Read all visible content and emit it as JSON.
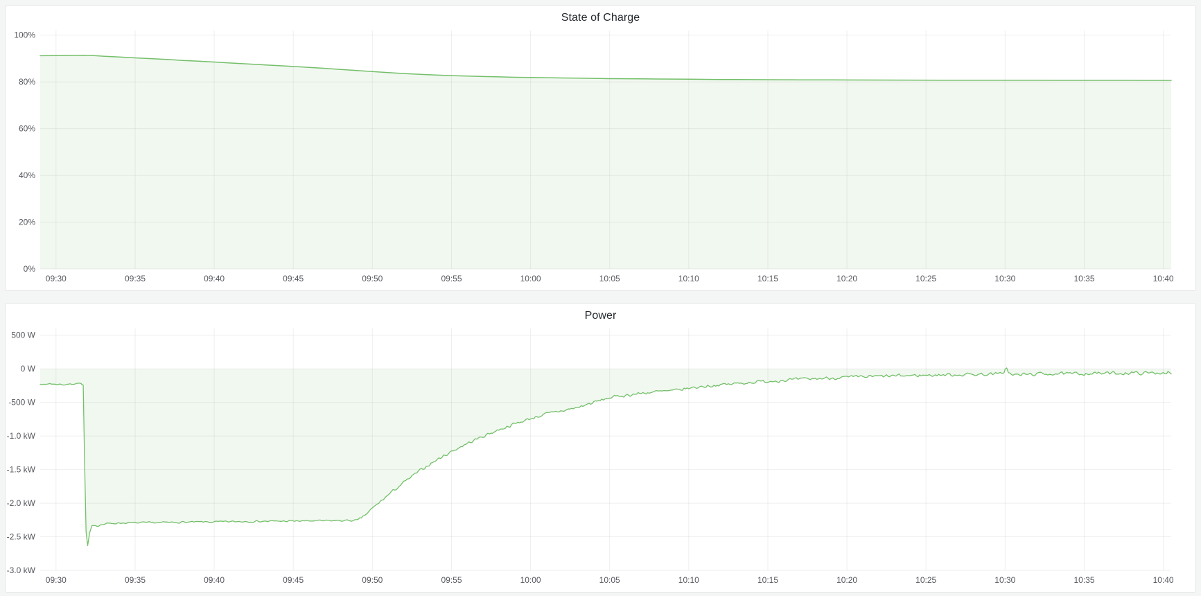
{
  "page": {
    "background": "#f4f5f5",
    "panel_background": "#ffffff"
  },
  "chart_data": [
    {
      "type": "area",
      "title": "State of Charge",
      "xlabel": "",
      "ylabel": "",
      "x_ticks": [
        "09:30",
        "09:35",
        "09:40",
        "09:45",
        "09:50",
        "09:55",
        "10:00",
        "10:05",
        "10:10",
        "10:15",
        "10:20",
        "10:25",
        "10:30",
        "10:35",
        "10:40"
      ],
      "x_tick_minutes": [
        0,
        5,
        10,
        15,
        20,
        25,
        30,
        35,
        40,
        45,
        50,
        55,
        60,
        65,
        70
      ],
      "xlim_minutes": [
        -1,
        70.5
      ],
      "y_ticks": [
        {
          "value": 100,
          "label": "100%"
        },
        {
          "value": 80,
          "label": "80%"
        },
        {
          "value": 60,
          "label": "60%"
        },
        {
          "value": 40,
          "label": "40%"
        },
        {
          "value": 20,
          "label": "20%"
        },
        {
          "value": 0,
          "label": "0%"
        }
      ],
      "ylim": [
        0,
        102
      ],
      "grid": true,
      "legend": "none",
      "series": [
        {
          "name": "State of Charge",
          "color": "#73BF69",
          "fill_opacity": 0.1,
          "line_width": 1.5,
          "fill_to_zero": true,
          "points": [
            [
              -1,
              91.2
            ],
            [
              0,
              91.25
            ],
            [
              0.7,
              91.3
            ],
            [
              1.3,
              91.35
            ],
            [
              1.8,
              91.4
            ],
            [
              2.5,
              91.2
            ],
            [
              3,
              91.0
            ],
            [
              4,
              90.65
            ],
            [
              5,
              90.3
            ],
            [
              6,
              89.95
            ],
            [
              7,
              89.6
            ],
            [
              8,
              89.2
            ],
            [
              9,
              88.85
            ],
            [
              10,
              88.5
            ],
            [
              11,
              88.1
            ],
            [
              12,
              87.75
            ],
            [
              13,
              87.35
            ],
            [
              14,
              87.0
            ],
            [
              15,
              86.6
            ],
            [
              16,
              86.2
            ],
            [
              17,
              85.8
            ],
            [
              18,
              85.35
            ],
            [
              19,
              84.9
            ],
            [
              20,
              84.45
            ],
            [
              21,
              84.0
            ],
            [
              22,
              83.6
            ],
            [
              23,
              83.25
            ],
            [
              24,
              82.95
            ],
            [
              25,
              82.7
            ],
            [
              26,
              82.5
            ],
            [
              27,
              82.3
            ],
            [
              28,
              82.15
            ],
            [
              29,
              82.0
            ],
            [
              30,
              81.9
            ],
            [
              31,
              81.8
            ],
            [
              32,
              81.7
            ],
            [
              33,
              81.6
            ],
            [
              34,
              81.5
            ],
            [
              35,
              81.4
            ],
            [
              36,
              81.35
            ],
            [
              37,
              81.3
            ],
            [
              38,
              81.25
            ],
            [
              39,
              81.2
            ],
            [
              40,
              81.15
            ],
            [
              41,
              81.1
            ],
            [
              42,
              81.05
            ],
            [
              43,
              81.0
            ],
            [
              44,
              80.97
            ],
            [
              45,
              80.95
            ],
            [
              46,
              80.92
            ],
            [
              47,
              80.9
            ],
            [
              48,
              80.88
            ],
            [
              49,
              80.85
            ],
            [
              50,
              80.83
            ],
            [
              52,
              80.8
            ],
            [
              54,
              80.77
            ],
            [
              56,
              80.75
            ],
            [
              58,
              80.73
            ],
            [
              60,
              80.72
            ],
            [
              62,
              80.7
            ],
            [
              64,
              80.69
            ],
            [
              66,
              80.68
            ],
            [
              68,
              80.67
            ],
            [
              70,
              80.66
            ],
            [
              70.5,
              80.66
            ]
          ]
        }
      ]
    },
    {
      "type": "area",
      "title": "Power",
      "xlabel": "",
      "ylabel": "",
      "x_ticks": [
        "09:30",
        "09:35",
        "09:40",
        "09:45",
        "09:50",
        "09:55",
        "10:00",
        "10:05",
        "10:10",
        "10:15",
        "10:20",
        "10:25",
        "10:30",
        "10:35",
        "10:40"
      ],
      "x_tick_minutes": [
        0,
        5,
        10,
        15,
        20,
        25,
        30,
        35,
        40,
        45,
        50,
        55,
        60,
        65,
        70
      ],
      "xlim_minutes": [
        -1,
        70.5
      ],
      "y_ticks": [
        {
          "value": 500,
          "label": "500 W"
        },
        {
          "value": 0,
          "label": "0 W"
        },
        {
          "value": -500,
          "label": "-500 W"
        },
        {
          "value": -1000,
          "label": "-1.0 kW"
        },
        {
          "value": -1500,
          "label": "-1.5 kW"
        },
        {
          "value": -2000,
          "label": "-2.0 kW"
        },
        {
          "value": -2500,
          "label": "-2.5 kW"
        },
        {
          "value": -3000,
          "label": "-3.0 kW"
        }
      ],
      "ylim": [
        -3000,
        600
      ],
      "grid": true,
      "legend": "none",
      "series": [
        {
          "name": "Power",
          "color": "#73BF69",
          "fill_opacity": 0.1,
          "line_width": 1.3,
          "fill_to_zero": true,
          "noise_seed": 7,
          "sample_dt_min": 0.1,
          "noise_segments": [
            [
              -1,
              1.72,
              12
            ],
            [
              1.72,
              2.6,
              4
            ],
            [
              2.6,
              19.1,
              15
            ],
            [
              19.1,
              30,
              26
            ],
            [
              30,
              45,
              28
            ],
            [
              45,
              70.6,
              30
            ]
          ],
          "breakpoints": [
            [
              -1,
              -222
            ],
            [
              -0.7,
              -238
            ],
            [
              -0.4,
              -218
            ],
            [
              -0.1,
              -232
            ],
            [
              0.2,
              -228
            ],
            [
              0.5,
              -238
            ],
            [
              0.8,
              -225
            ],
            [
              1.05,
              -235
            ],
            [
              1.3,
              -208
            ],
            [
              1.5,
              -212
            ],
            [
              1.62,
              -228
            ],
            [
              1.72,
              -245
            ],
            [
              1.8,
              -1300
            ],
            [
              1.9,
              -2430
            ],
            [
              2.0,
              -2635
            ],
            [
              2.12,
              -2450
            ],
            [
              2.28,
              -2330
            ],
            [
              2.6,
              -2335
            ],
            [
              3.2,
              -2305
            ],
            [
              4,
              -2295
            ],
            [
              6,
              -2290
            ],
            [
              8,
              -2283
            ],
            [
              10,
              -2278
            ],
            [
              12,
              -2272
            ],
            [
              14,
              -2268
            ],
            [
              16,
              -2264
            ],
            [
              18,
              -2260
            ],
            [
              19.1,
              -2256
            ],
            [
              19.5,
              -2185
            ],
            [
              20,
              -2080
            ],
            [
              20.5,
              -1978
            ],
            [
              21,
              -1878
            ],
            [
              21.5,
              -1782
            ],
            [
              22,
              -1690
            ],
            [
              22.5,
              -1602
            ],
            [
              23,
              -1518
            ],
            [
              23.5,
              -1440
            ],
            [
              24,
              -1367
            ],
            [
              24.5,
              -1297
            ],
            [
              25,
              -1232
            ],
            [
              25.5,
              -1170
            ],
            [
              26,
              -1112
            ],
            [
              26.5,
              -1057
            ],
            [
              27,
              -1005
            ],
            [
              27.5,
              -955
            ],
            [
              28,
              -908
            ],
            [
              28.5,
              -863
            ],
            [
              29,
              -820
            ],
            [
              29.5,
              -780
            ],
            [
              30,
              -742
            ],
            [
              30.5,
              -706
            ],
            [
              31,
              -672
            ],
            [
              31.5,
              -648
            ],
            [
              32,
              -625
            ],
            [
              32.5,
              -600
            ],
            [
              33,
              -575
            ],
            [
              33.5,
              -537
            ],
            [
              34,
              -500
            ],
            [
              34.5,
              -465
            ],
            [
              35,
              -430
            ],
            [
              35.5,
              -412
            ],
            [
              36,
              -395
            ],
            [
              36.5,
              -380
            ],
            [
              37,
              -365
            ],
            [
              37.5,
              -352
            ],
            [
              38,
              -340
            ],
            [
              38.5,
              -334
            ],
            [
              39,
              -328
            ],
            [
              39.5,
              -308
            ],
            [
              40,
              -290
            ],
            [
              40.5,
              -275
            ],
            [
              41,
              -260
            ],
            [
              41.5,
              -250
            ],
            [
              42,
              -240
            ],
            [
              42.5,
              -230
            ],
            [
              43,
              -220
            ],
            [
              43.5,
              -210
            ],
            [
              44,
              -200
            ],
            [
              44.5,
              -192
            ],
            [
              45,
              -185
            ],
            [
              45.5,
              -177
            ],
            [
              46,
              -170
            ],
            [
              46.5,
              -164
            ],
            [
              47,
              -158
            ],
            [
              47.5,
              -152
            ],
            [
              48,
              -147
            ],
            [
              48.5,
              -142
            ],
            [
              49,
              -137
            ],
            [
              49.5,
              -132
            ],
            [
              50,
              -128
            ],
            [
              51,
              -120
            ],
            [
              52,
              -113
            ],
            [
              53,
              -107
            ],
            [
              54,
              -101
            ],
            [
              55,
              -96
            ],
            [
              56,
              -91
            ],
            [
              57,
              -87
            ],
            [
              58,
              -83
            ],
            [
              59,
              -80
            ],
            [
              59.8,
              -75
            ],
            [
              59.95,
              -30
            ],
            [
              60.1,
              20
            ],
            [
              60.25,
              -70
            ],
            [
              60.5,
              -95
            ],
            [
              61,
              -85
            ],
            [
              62,
              -78
            ],
            [
              63,
              -72
            ],
            [
              64,
              -76
            ],
            [
              65,
              -70
            ],
            [
              66,
              -66
            ],
            [
              67,
              -68
            ],
            [
              68,
              -62
            ],
            [
              69,
              -64
            ],
            [
              70,
              -58
            ],
            [
              70.3,
              -52
            ],
            [
              70.5,
              -88
            ]
          ]
        }
      ]
    }
  ]
}
